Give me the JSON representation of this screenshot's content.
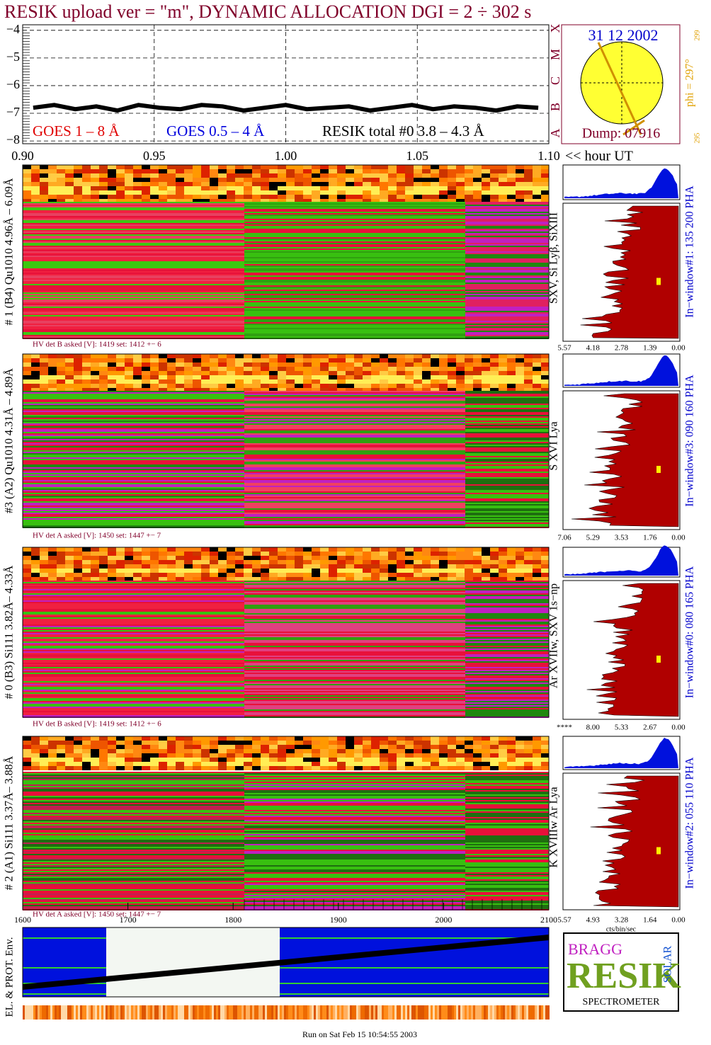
{
  "title": "RESIK upload ver = \"m\", DYNAMIC ALLOCATION  DGI =   2 ÷ 302 s",
  "goes": {
    "ylim": [
      -8.1,
      -3.8
    ],
    "yticks": [
      {
        "value": -4,
        "label": "−4"
      },
      {
        "value": -5,
        "label": "−5"
      },
      {
        "value": -6,
        "label": "−6"
      },
      {
        "value": -7,
        "label": "−7"
      },
      {
        "value": -8,
        "label": "−8"
      }
    ],
    "xlim": [
      0.9,
      1.1
    ],
    "xticks": [
      {
        "value": 0.9,
        "label": "0.90"
      },
      {
        "value": 0.95,
        "label": "0.95"
      },
      {
        "value": 1,
        "label": "1.00"
      },
      {
        "value": 1.05,
        "label": "1.05"
      },
      {
        "value": 1.1,
        "label": "1.10"
      }
    ],
    "x_label": "<< hour UT",
    "legend": [
      {
        "name": "GOES 1 – 8 Å",
        "color": "#e00000"
      },
      {
        "name": "GOES 0.5 – 4 Å",
        "color": "#0000dd"
      },
      {
        "name": "RESIK total #0  3.8 – 4.3 Å",
        "color": "#000000"
      }
    ],
    "resik_x": [
      0.904,
      0.912,
      0.92,
      0.928,
      0.936,
      0.944,
      0.952,
      0.96,
      0.968,
      0.976,
      0.984,
      0.992,
      1.0,
      1.008,
      1.016,
      1.024,
      1.032,
      1.04,
      1.048,
      1.056,
      1.064,
      1.072,
      1.08,
      1.088,
      1.096
    ],
    "resik_total": [
      -6.8,
      -6.7,
      -6.85,
      -6.75,
      -6.9,
      -6.7,
      -6.8,
      -6.85,
      -6.7,
      -6.75,
      -6.9,
      -6.8,
      -6.7,
      -6.85,
      -6.8,
      -6.75,
      -6.9,
      -6.8,
      -6.7,
      -6.85,
      -6.75,
      -6.8,
      -6.9,
      -6.75,
      -6.8
    ]
  },
  "sun": {
    "date": "31 12 2002",
    "dump": "Dump: 07916",
    "phi": "phi = 297°",
    "phi_max": "299",
    "phi_min": "295",
    "classes": [
      "X",
      "M",
      "C",
      "B",
      "A"
    ]
  },
  "channels": [
    {
      "label": "# 1 (B4) Qu1010 4.96Å – 6.09Å",
      "lines": "SXV, Si Lyβ, SiXIII",
      "window": "In−window#1:  135 200 PHA",
      "hv": "HV det B asked [V]:  1419 set:  1412 +−    6",
      "hist_ticks": [
        "5.57",
        "4.18",
        "2.78",
        "1.39",
        "0.00"
      ]
    },
    {
      "label": "#3 (A2) Qu1010  4.31Å – 4.89Å",
      "lines": "S XVI Lya",
      "window": "In−window#3:  090 160 PHA",
      "hv": "HV det A asked [V]:  1450 set:  1447 +−    7",
      "hist_ticks": [
        "7.06",
        "5.29",
        "3.53",
        "1.76",
        "0.00"
      ]
    },
    {
      "label": "# 0 (B3) Si111  3.82Å– 4.33Å",
      "lines": "Ar XVIIw, SXV 1s−np",
      "window": "In−window#0:  080 165 PHA",
      "hv": "HV det B asked [V]:  1419 set:  1412 +−    6",
      "hist_ticks": [
        "****",
        "8.00",
        "5.33",
        "2.67",
        "0.00"
      ]
    },
    {
      "label": "# 2 (A1) Si111  3.37Å– 3.88Å",
      "lines": "K XVIIIw  Ar Lya",
      "window": "In−window#2:  055 110 PHA",
      "hv": "HV det A asked [V]:  1450 set:  1447 +−    7",
      "hist_ticks": [
        "5.57",
        "4.93",
        "3.28",
        "1.64",
        "0.00"
      ]
    }
  ],
  "bottom": {
    "xlim": [
      1600,
      2100
    ],
    "xticks": [
      1600,
      1700,
      1800,
      1900,
      2000,
      2100
    ],
    "y_label": "EL. & PROT. Env.",
    "cts_label": "cts/bin/sec"
  },
  "logo": {
    "bragg": "BRAGG",
    "resik": "RESIK",
    "solar": "SOLAR",
    "spectrometer": "SPECTROMETER"
  },
  "footer": "Run on Sat Feb 15 10:54:55 2003"
}
